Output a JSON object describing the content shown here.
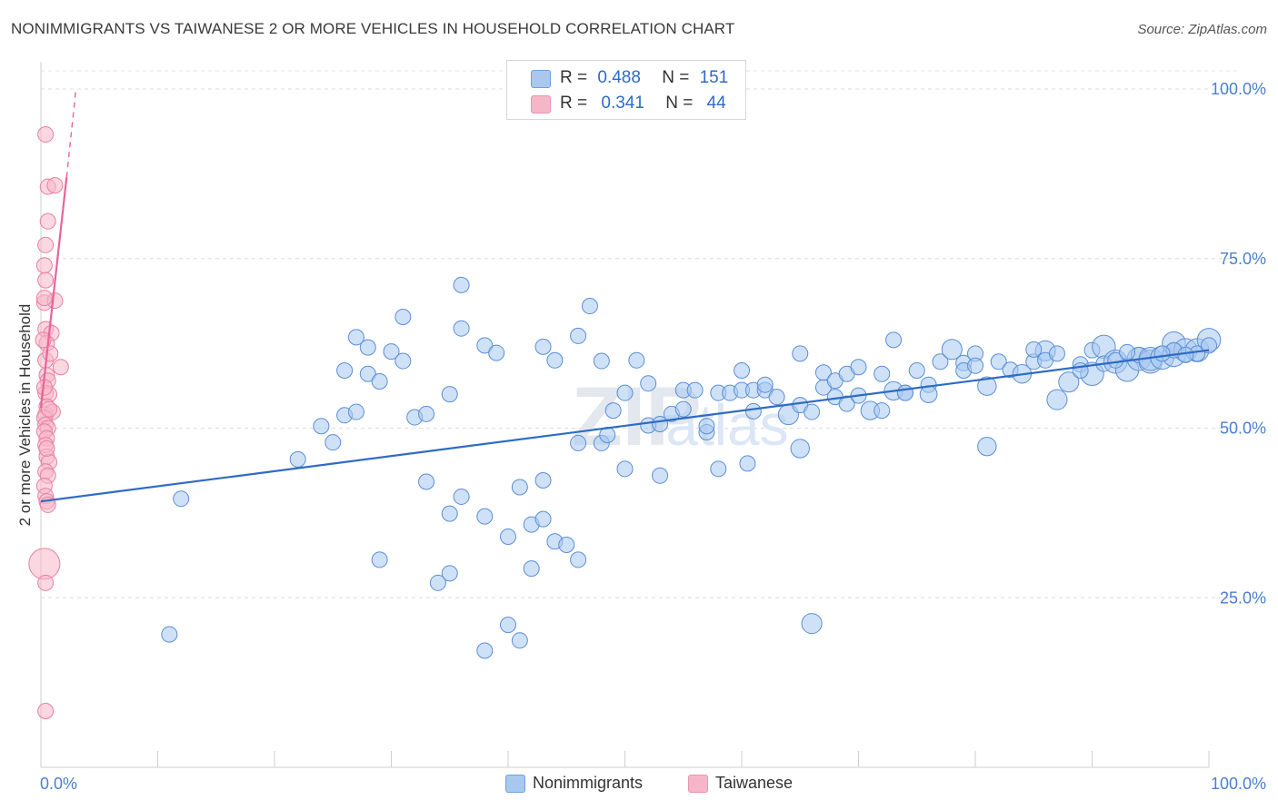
{
  "title": "NONIMMIGRANTS VS TAIWANESE 2 OR MORE VEHICLES IN HOUSEHOLD CORRELATION CHART",
  "source": "Source: ZipAtlas.com",
  "watermark": "ZIPatlas",
  "legend": {
    "r_label": "R =",
    "n_label": "N =",
    "rows": [
      {
        "r": "0.488",
        "n": "151",
        "color": "#a8c8f0"
      },
      {
        "r": "0.341",
        "n": "44",
        "color": "#f7b6c8"
      }
    ]
  },
  "chart_data": {
    "type": "scatter",
    "xlabel": "",
    "ylabel": "2 or more Vehicles in Household",
    "xlim": [
      0,
      100
    ],
    "ylim": [
      0,
      100
    ],
    "x_tick_labels": [
      "0.0%",
      "100.0%"
    ],
    "y_tick_labels": [
      "25.0%",
      "50.0%",
      "75.0%",
      "100.0%"
    ],
    "y_ticks": [
      25,
      50,
      75,
      100
    ],
    "grid": "horizontal dashed",
    "legend_position": "top-center",
    "series": [
      {
        "name": "Nonimmigrants",
        "color": "#a8c8f0",
        "stroke": "#5b8fd6",
        "trend": {
          "x0": 0,
          "y0": 39.2,
          "x1": 100,
          "y1": 61.5,
          "color": "#2e6bc5"
        },
        "points": [
          [
            12,
            39.6,
            1
          ],
          [
            11,
            19.6,
            1
          ],
          [
            22,
            45.4,
            1
          ],
          [
            24,
            50.3,
            1
          ],
          [
            25,
            47.9,
            1
          ],
          [
            26,
            51.9,
            1
          ],
          [
            27,
            52.4,
            1
          ],
          [
            26,
            58.5,
            1
          ],
          [
            27,
            63.4,
            1
          ],
          [
            28,
            58.0,
            1
          ],
          [
            28,
            61.9,
            1
          ],
          [
            29,
            56.9,
            1
          ],
          [
            30,
            61.3,
            1
          ],
          [
            31,
            66.4,
            1
          ],
          [
            31,
            59.9,
            1
          ],
          [
            32,
            51.6,
            1
          ],
          [
            33,
            52.1,
            1
          ],
          [
            33,
            42.1,
            1
          ],
          [
            35,
            55.0,
            1
          ],
          [
            36,
            71.1,
            1
          ],
          [
            36,
            64.7,
            1
          ],
          [
            38,
            62.2,
            1
          ],
          [
            39,
            61.1,
            1
          ],
          [
            29,
            30.6,
            1
          ],
          [
            34,
            27.2,
            1
          ],
          [
            35,
            28.6,
            1
          ],
          [
            35,
            37.4,
            1
          ],
          [
            36,
            39.9,
            1
          ],
          [
            38,
            37.0,
            1
          ],
          [
            40,
            34.0,
            1
          ],
          [
            40,
            21.0,
            1
          ],
          [
            41,
            18.7,
            1
          ],
          [
            38,
            17.2,
            1
          ],
          [
            41,
            41.3,
            1
          ],
          [
            42,
            29.3,
            1
          ],
          [
            42,
            35.8,
            1
          ],
          [
            43,
            36.6,
            1
          ],
          [
            43,
            42.3,
            1
          ],
          [
            44,
            33.3,
            1
          ],
          [
            45,
            32.8,
            1
          ],
          [
            43,
            62.0,
            1
          ],
          [
            44,
            60.0,
            1
          ],
          [
            46,
            63.6,
            1
          ],
          [
            47,
            68.0,
            1
          ],
          [
            48,
            59.9,
            1
          ],
          [
            46,
            30.6,
            1
          ],
          [
            46,
            47.8,
            1
          ],
          [
            48,
            47.8,
            1
          ],
          [
            48.5,
            49.0,
            1
          ],
          [
            49,
            52.6,
            1
          ],
          [
            50,
            44.0,
            1
          ],
          [
            50,
            55.2,
            1
          ],
          [
            51,
            60.0,
            1
          ],
          [
            52,
            50.4,
            1
          ],
          [
            52,
            56.6,
            1
          ],
          [
            53,
            50.6,
            1
          ],
          [
            53,
            43.0,
            1
          ],
          [
            54,
            52.1,
            1
          ],
          [
            55,
            52.8,
            1
          ],
          [
            55,
            55.6,
            1
          ],
          [
            56,
            55.6,
            1
          ],
          [
            57,
            49.4,
            1
          ],
          [
            57,
            50.3,
            1
          ],
          [
            58,
            44.0,
            1
          ],
          [
            58,
            55.2,
            1
          ],
          [
            59,
            55.2,
            1
          ],
          [
            60,
            55.6,
            1
          ],
          [
            60,
            58.5,
            1
          ],
          [
            60.5,
            44.8,
            1
          ],
          [
            61,
            52.5,
            1
          ],
          [
            61,
            55.6,
            1
          ],
          [
            62,
            55.6,
            1
          ],
          [
            62,
            56.4,
            1
          ],
          [
            63,
            54.6,
            1
          ],
          [
            64,
            52.0,
            1.3
          ],
          [
            65,
            53.4,
            1
          ],
          [
            65,
            61.0,
            1
          ],
          [
            65,
            47.0,
            1.2
          ],
          [
            66,
            52.4,
            1
          ],
          [
            67,
            56.0,
            1
          ],
          [
            67,
            58.2,
            1
          ],
          [
            68,
            54.6,
            1
          ],
          [
            68,
            57.0,
            1
          ],
          [
            69,
            53.6,
            1
          ],
          [
            69,
            58.0,
            1
          ],
          [
            70,
            54.8,
            1
          ],
          [
            70,
            59.0,
            1
          ],
          [
            71,
            52.6,
            1.2
          ],
          [
            72,
            52.6,
            1
          ],
          [
            72,
            58.0,
            1
          ],
          [
            73,
            55.5,
            1.2
          ],
          [
            73,
            63.0,
            1
          ],
          [
            74,
            55.2,
            1
          ],
          [
            74,
            55.2,
            1
          ],
          [
            75,
            58.5,
            1
          ],
          [
            76,
            56.4,
            1
          ],
          [
            76,
            55.0,
            1.1
          ],
          [
            77,
            59.8,
            1
          ],
          [
            78,
            61.6,
            1.3
          ],
          [
            79,
            59.6,
            1
          ],
          [
            79,
            58.5,
            1
          ],
          [
            80,
            61.0,
            1
          ],
          [
            80,
            59.2,
            1
          ],
          [
            81,
            56.2,
            1.2
          ],
          [
            81,
            47.3,
            1.2
          ],
          [
            82,
            59.8,
            1
          ],
          [
            83,
            58.6,
            1
          ],
          [
            84,
            58.0,
            1.2
          ],
          [
            85,
            59.8,
            1
          ],
          [
            86,
            61.4,
            1.3
          ],
          [
            86,
            60.0,
            1
          ],
          [
            87,
            61.0,
            1
          ],
          [
            87,
            54.2,
            1.3
          ],
          [
            88,
            56.8,
            1.3
          ],
          [
            89,
            59.4,
            1
          ],
          [
            90,
            58.0,
            1.5
          ],
          [
            90,
            61.5,
            1
          ],
          [
            91,
            62.0,
            1.5
          ],
          [
            91,
            59.5,
            1
          ],
          [
            92,
            59.8,
            1.5
          ],
          [
            93,
            58.6,
            1.5
          ],
          [
            94,
            60.2,
            1.5
          ],
          [
            94,
            60.8,
            1
          ],
          [
            95,
            59.8,
            1.5
          ],
          [
            95,
            60.2,
            1.5
          ],
          [
            96,
            60.4,
            1.5
          ],
          [
            97,
            60.8,
            1.5
          ],
          [
            97,
            62.5,
            1.5
          ],
          [
            98,
            61.5,
            1.5
          ],
          [
            99,
            61.5,
            1.5
          ],
          [
            100,
            63.0,
            1.5
          ],
          [
            99,
            61.0,
            1
          ],
          [
            100,
            62.2,
            1
          ],
          [
            97,
            61.5,
            1
          ],
          [
            96,
            61.0,
            1
          ],
          [
            98,
            60.8,
            1
          ],
          [
            92,
            60.0,
            1
          ],
          [
            93,
            61.2,
            1
          ],
          [
            89,
            58.5,
            1
          ],
          [
            85,
            61.6,
            1
          ],
          [
            66,
            21.2,
            1.3
          ]
        ]
      },
      {
        "name": "Taiwanese",
        "color": "#f7b6c8",
        "stroke": "#e97fa3",
        "trend": {
          "x0": 0,
          "y0": 53.0,
          "x1": 2.2,
          "y1": 87.0,
          "color": "#e8649a",
          "dash_to": {
            "x": 3.0,
            "y": 100.0
          }
        },
        "points": [
          [
            0.4,
            93.3,
            1
          ],
          [
            0.6,
            85.6,
            1
          ],
          [
            1.2,
            85.8,
            1
          ],
          [
            0.6,
            80.5,
            1
          ],
          [
            0.4,
            77.0,
            1
          ],
          [
            0.3,
            74.0,
            1
          ],
          [
            0.4,
            71.8,
            1
          ],
          [
            0.3,
            68.5,
            1
          ],
          [
            1.2,
            68.8,
            1
          ],
          [
            0.3,
            69.2,
            1
          ],
          [
            0.4,
            64.6,
            1
          ],
          [
            0.9,
            64.0,
            1
          ],
          [
            0.5,
            62.5,
            1
          ],
          [
            0.4,
            60.0,
            1
          ],
          [
            1.7,
            59.0,
            1
          ],
          [
            0.5,
            57.8,
            1
          ],
          [
            0.6,
            57.0,
            1
          ],
          [
            0.4,
            55.2,
            1
          ],
          [
            0.7,
            55.0,
            1
          ],
          [
            0.5,
            53.2,
            1
          ],
          [
            0.4,
            52.0,
            1
          ],
          [
            1.0,
            52.4,
            1
          ],
          [
            0.3,
            51.5,
            1
          ],
          [
            0.4,
            50.5,
            1
          ],
          [
            0.6,
            50.0,
            1
          ],
          [
            0.3,
            49.5,
            1
          ],
          [
            0.5,
            48.5,
            1
          ],
          [
            0.4,
            47.5,
            1
          ],
          [
            0.5,
            45.8,
            1
          ],
          [
            0.7,
            45.0,
            1
          ],
          [
            0.4,
            43.6,
            1
          ],
          [
            0.6,
            43.0,
            1
          ],
          [
            0.3,
            41.5,
            1
          ],
          [
            0.4,
            40.0,
            1
          ],
          [
            0.5,
            39.2,
            1
          ],
          [
            0.6,
            38.7,
            1
          ],
          [
            0.3,
            30.0,
            2
          ],
          [
            0.4,
            27.2,
            1
          ],
          [
            0.4,
            8.3,
            1
          ],
          [
            0.5,
            47.0,
            1
          ],
          [
            0.7,
            52.8,
            1
          ],
          [
            0.2,
            63.0,
            1
          ],
          [
            0.3,
            56.0,
            1
          ],
          [
            0.8,
            61.0,
            1
          ]
        ]
      }
    ]
  }
}
